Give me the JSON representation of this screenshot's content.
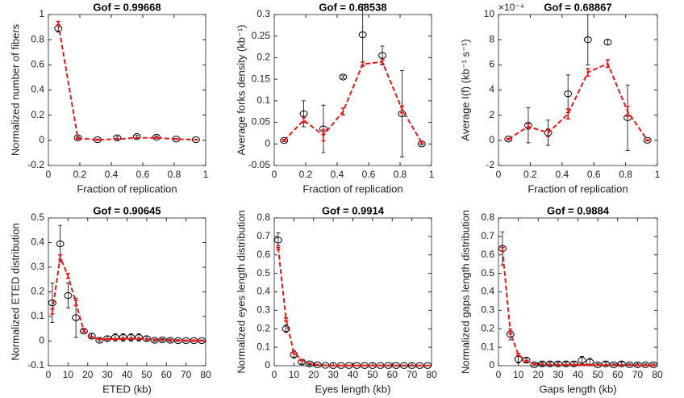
{
  "chart_data": [
    {
      "type": "errorbar",
      "title": "Gof = 0.99668",
      "xlabel": "Fraction of replication",
      "ylabel": "Normalized number of fibers",
      "x": [
        0.0625,
        0.1875,
        0.3125,
        0.4375,
        0.5625,
        0.6875,
        0.8125,
        0.9375
      ],
      "xlim": [
        0,
        1
      ],
      "xticks": [
        0,
        0.2,
        0.4,
        0.6,
        0.8,
        1
      ],
      "ylim": [
        -0.2,
        1
      ],
      "yticks": [
        -0.2,
        0,
        0.2,
        0.4,
        0.6,
        0.8,
        1
      ],
      "series": [
        {
          "color": "#000000",
          "marker": "circle",
          "line": "none",
          "values": [
            0.89,
            0.02,
            0.005,
            0.02,
            0.03,
            0.025,
            0.01,
            0.005
          ],
          "errors": [
            0.03,
            0.01,
            0.005,
            0.01,
            0.01,
            0.01,
            0.005,
            0.003
          ]
        },
        {
          "color": "#e31a1c",
          "marker": "none",
          "line": "dashed",
          "values": [
            0.93,
            0.015,
            0.005,
            0.01,
            0.02,
            0.02,
            0.01,
            0.005
          ],
          "errors": [
            0.015,
            0.005,
            0.003,
            0.003,
            0.003,
            0.003,
            0.003,
            0.002
          ]
        }
      ]
    },
    {
      "type": "errorbar",
      "title": "Gof = 0.68538",
      "xlabel": "Fraction of replication",
      "ylabel": "Average forks density (kb⁻¹)",
      "x": [
        0.0625,
        0.1875,
        0.3125,
        0.4375,
        0.5625,
        0.6875,
        0.8125,
        0.9375
      ],
      "xlim": [
        0,
        1
      ],
      "xticks": [
        0,
        0.2,
        0.4,
        0.6,
        0.8,
        1
      ],
      "ylim": [
        -0.05,
        0.3
      ],
      "yticks": [
        -0.05,
        0,
        0.05,
        0.1,
        0.15,
        0.2,
        0.25,
        0.3
      ],
      "series": [
        {
          "color": "#000000",
          "marker": "circle",
          "line": "none",
          "values": [
            0.008,
            0.07,
            0.035,
            0.155,
            0.253,
            0.205,
            0.07,
            0.0
          ],
          "errors": [
            0.003,
            0.03,
            0.055,
            0.003,
            0.07,
            0.022,
            0.1,
            0.002
          ]
        },
        {
          "color": "#e31a1c",
          "marker": "none",
          "line": "dashed",
          "values": [
            0.008,
            0.055,
            0.02,
            0.075,
            0.185,
            0.19,
            0.08,
            0.003
          ],
          "errors": [
            0.002,
            0.006,
            0.013,
            0.008,
            0.005,
            0.005,
            0.008,
            0.002
          ]
        }
      ]
    },
    {
      "type": "errorbar",
      "title": "Gof = 0.68867",
      "xlabel": "Fraction of replication",
      "ylabel": "Average I(f) (kb⁻¹ s⁻¹)",
      "annotation": "×10⁻⁴",
      "x": [
        0.0625,
        0.1875,
        0.3125,
        0.4375,
        0.5625,
        0.6875,
        0.8125,
        0.9375
      ],
      "xlim": [
        0,
        1
      ],
      "xticks": [
        0,
        0.2,
        0.4,
        0.6,
        0.8,
        1
      ],
      "ylim": [
        -2,
        10
      ],
      "yticks": [
        -2,
        0,
        2,
        4,
        6,
        8,
        10
      ],
      "series": [
        {
          "color": "#000000",
          "marker": "circle",
          "line": "none",
          "values": [
            0.1,
            1.2,
            0.6,
            3.7,
            8,
            7.8,
            1.8,
            0
          ],
          "errors": [
            0.05,
            1.4,
            1,
            1.5,
            2,
            0.2,
            2.6,
            0.05
          ]
        },
        {
          "color": "#e31a1c",
          "marker": "none",
          "line": "dashed",
          "values": [
            0.1,
            1.1,
            0.6,
            2.1,
            5.4,
            6.1,
            2.3,
            0
          ],
          "errors": [
            0.05,
            0.2,
            0.3,
            0.4,
            0.3,
            0.3,
            0.4,
            0.05
          ]
        }
      ]
    },
    {
      "type": "errorbar",
      "title": "Gof = 0.90645",
      "xlabel": "ETED (kb)",
      "ylabel": "Normalized ETED distribution",
      "x": [
        2,
        6,
        10,
        14,
        18,
        22,
        26,
        30,
        34,
        38,
        42,
        46,
        50,
        54,
        58,
        62,
        66,
        70,
        74,
        78
      ],
      "xlim": [
        0,
        80
      ],
      "xticks": [
        0,
        10,
        20,
        30,
        40,
        50,
        60,
        70,
        80
      ],
      "ylim": [
        -0.1,
        0.5
      ],
      "yticks": [
        -0.1,
        0,
        0.1,
        0.2,
        0.3,
        0.4,
        0.5
      ],
      "series": [
        {
          "color": "#000000",
          "marker": "circle",
          "line": "none",
          "values": [
            0.155,
            0.395,
            0.185,
            0.095,
            0.04,
            0.02,
            0.003,
            0.01,
            0.015,
            0.015,
            0.015,
            0.015,
            0.01,
            0.003,
            0.005,
            0.003,
            0.002,
            0.002,
            0.002,
            0.002
          ],
          "errors": [
            0.08,
            0.075,
            0.05,
            0.08,
            0.005,
            0.01,
            0.005,
            0.01,
            0.015,
            0.015,
            0.015,
            0.015,
            0.01,
            0.005,
            0.005,
            0.005,
            0.003,
            0.003,
            0.003,
            0.003
          ]
        },
        {
          "color": "#e31a1c",
          "marker": "none",
          "line": "dashed",
          "values": [
            0.12,
            0.34,
            0.265,
            0.155,
            0.042,
            0.015,
            0.008,
            0.008,
            0.008,
            0.01,
            0.01,
            0.01,
            0.008,
            0.005,
            0.005,
            0.004,
            0.003,
            0.002,
            0.002,
            0.002
          ],
          "errors": [
            0.01,
            0.01,
            0.01,
            0.01,
            0.005,
            0.003,
            0.002,
            0.002,
            0.002,
            0.002,
            0.002,
            0.002,
            0.002,
            0.002,
            0.002,
            0.002,
            0.002,
            0.002,
            0.002,
            0.002
          ]
        }
      ]
    },
    {
      "type": "errorbar",
      "title": "Gof = 0.9914",
      "xlabel": "Eyes length (kb)",
      "ylabel": "Normalized eyes length distribution",
      "x": [
        2,
        6,
        10,
        14,
        18,
        22,
        26,
        30,
        34,
        38,
        42,
        46,
        50,
        54,
        58,
        62,
        66,
        70,
        74,
        78
      ],
      "xlim": [
        0,
        80
      ],
      "xticks": [
        0,
        10,
        20,
        30,
        40,
        50,
        60,
        70,
        80
      ],
      "ylim": [
        0,
        0.8
      ],
      "yticks": [
        0,
        0.1,
        0.2,
        0.3,
        0.4,
        0.5,
        0.6,
        0.7,
        0.8
      ],
      "series": [
        {
          "color": "#000000",
          "marker": "circle",
          "line": "none",
          "values": [
            0.68,
            0.2,
            0.06,
            0.02,
            0.01,
            0.005,
            0.002,
            0.001,
            0.001,
            0.001,
            0.001,
            0.001,
            0.001,
            0.001,
            0.001,
            0.001,
            0.001,
            0.001,
            0.001,
            0.001
          ],
          "errors": [
            0.04,
            0.02,
            0.02,
            0.01,
            0.005,
            0.003,
            0.002,
            0.001,
            0.001,
            0.001,
            0.001,
            0.001,
            0.001,
            0.001,
            0.001,
            0.001,
            0.001,
            0.001,
            0.001,
            0.001
          ]
        },
        {
          "color": "#e31a1c",
          "marker": "none",
          "line": "dashed",
          "values": [
            0.64,
            0.25,
            0.07,
            0.03,
            0.012,
            0.005,
            0.002,
            0.001,
            0.001,
            0.001,
            0.001,
            0.001,
            0.001,
            0.001,
            0.001,
            0.001,
            0.001,
            0.001,
            0.001,
            0.001
          ],
          "errors": [
            0.01,
            0.008,
            0.005,
            0.003,
            0.002,
            0.001,
            0.001,
            0.001,
            0.001,
            0.001,
            0.001,
            0.001,
            0.001,
            0.001,
            0.001,
            0.001,
            0.001,
            0.001,
            0.001,
            0.001
          ]
        }
      ]
    },
    {
      "type": "errorbar",
      "title": "Gof = 0.9884",
      "xlabel": "Gaps length (kb)",
      "ylabel": "Normalized gaps length distribution",
      "x": [
        2,
        6,
        10,
        14,
        18,
        22,
        26,
        30,
        34,
        38,
        42,
        46,
        50,
        54,
        58,
        62,
        66,
        70,
        74,
        78
      ],
      "xlim": [
        0,
        80
      ],
      "xticks": [
        0,
        10,
        20,
        30,
        40,
        50,
        60,
        70,
        80
      ],
      "ylim": [
        0,
        0.8
      ],
      "yticks": [
        0,
        0.1,
        0.2,
        0.3,
        0.4,
        0.5,
        0.6,
        0.7,
        0.8
      ],
      "series": [
        {
          "color": "#000000",
          "marker": "circle",
          "line": "none",
          "values": [
            0.635,
            0.17,
            0.035,
            0.03,
            0.005,
            0.01,
            0.01,
            0.01,
            0.01,
            0.01,
            0.03,
            0.02,
            0.005,
            0.01,
            0.005,
            0.01,
            0.005,
            0.005,
            0.005,
            0.005
          ],
          "errors": [
            0.09,
            0.03,
            0.02,
            0.01,
            0.005,
            0.01,
            0.01,
            0.01,
            0.01,
            0.01,
            0.02,
            0.02,
            0.005,
            0.01,
            0.005,
            0.01,
            0.005,
            0.005,
            0.005,
            0.005
          ]
        },
        {
          "color": "#e31a1c",
          "marker": "none",
          "line": "dashed",
          "values": [
            0.63,
            0.18,
            0.06,
            0.025,
            0.01,
            0.008,
            0.006,
            0.005,
            0.005,
            0.005,
            0.005,
            0.005,
            0.004,
            0.004,
            0.003,
            0.003,
            0.003,
            0.002,
            0.002,
            0.002
          ],
          "errors": [
            0.01,
            0.008,
            0.005,
            0.003,
            0.002,
            0.002,
            0.002,
            0.002,
            0.002,
            0.002,
            0.002,
            0.002,
            0.002,
            0.002,
            0.002,
            0.002,
            0.002,
            0.002,
            0.002,
            0.002
          ]
        }
      ]
    }
  ]
}
